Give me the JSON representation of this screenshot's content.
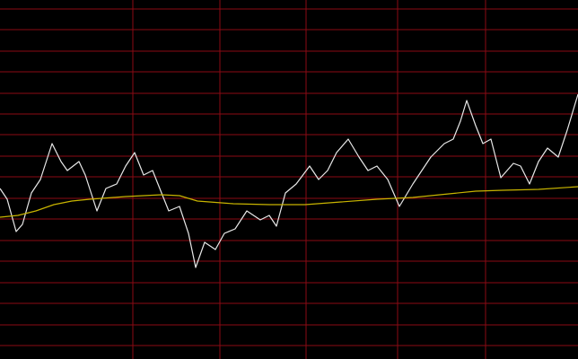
{
  "chart_data": {
    "type": "line",
    "xlim": [
      0,
      644
    ],
    "ylim": [
      0,
      400
    ],
    "xticks": [
      148,
      245,
      341,
      443,
      541
    ],
    "yticks": [
      390,
      367,
      343,
      320,
      296,
      273,
      250,
      226,
      203,
      179,
      156,
      132,
      109,
      85,
      62,
      38,
      15
    ],
    "grid": true,
    "grid_color": "#8b0a14",
    "series": [
      {
        "color": "#e8e8e8",
        "x": [
          0,
          8,
          18,
          25,
          35,
          45,
          58,
          68,
          75,
          88,
          95,
          108,
          118,
          130,
          140,
          150,
          160,
          170,
          180,
          188,
          200,
          210,
          218,
          228,
          240,
          250,
          262,
          275,
          290,
          300,
          308,
          318,
          330,
          345,
          355,
          365,
          375,
          388,
          400,
          410,
          420,
          432,
          445,
          460,
          470,
          480,
          495,
          505,
          513,
          520,
          530,
          538,
          547,
          558,
          572,
          580,
          590,
          600,
          610,
          622,
          632,
          644
        ],
        "values": [
          190,
          178,
          142,
          150,
          185,
          200,
          240,
          220,
          210,
          220,
          205,
          165,
          190,
          195,
          215,
          230,
          205,
          210,
          185,
          165,
          170,
          140,
          102,
          130,
          122,
          140,
          145,
          165,
          155,
          160,
          148,
          185,
          195,
          215,
          200,
          210,
          230,
          245,
          225,
          210,
          215,
          200,
          170,
          195,
          210,
          225,
          240,
          245,
          265,
          288,
          260,
          240,
          245,
          202,
          218,
          215,
          195,
          220,
          235,
          225,
          255,
          295
        ]
      },
      {
        "color": "#c8b400",
        "x": [
          0,
          20,
          40,
          60,
          80,
          100,
          140,
          180,
          200,
          220,
          260,
          300,
          340,
          380,
          420,
          460,
          500,
          530,
          560,
          600,
          644
        ],
        "values": [
          158,
          160,
          165,
          172,
          176,
          178,
          181,
          183,
          182,
          176,
          173,
          172,
          172,
          175,
          178,
          180,
          184,
          187,
          188,
          189,
          192
        ]
      }
    ]
  }
}
